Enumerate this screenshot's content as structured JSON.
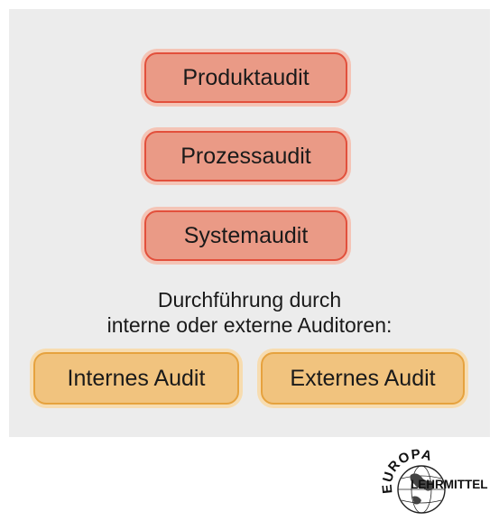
{
  "boxes": {
    "product": "Produktaudit",
    "process": "Prozessaudit",
    "system": "Systemaudit",
    "internal": "Internes Audit",
    "external": "Externes Audit"
  },
  "caption": {
    "line1": "Durchführung durch",
    "line2": "interne oder externe Auditoren:"
  },
  "logo": {
    "top_text": "EUROPA",
    "bottom_text": "LEHRMITTEL"
  },
  "colors": {
    "panel": "#ececec",
    "red_fill": "#ea9a86",
    "red_border": "#e2503c",
    "orange_fill": "#f1c37e",
    "orange_border": "#e6a23e"
  }
}
